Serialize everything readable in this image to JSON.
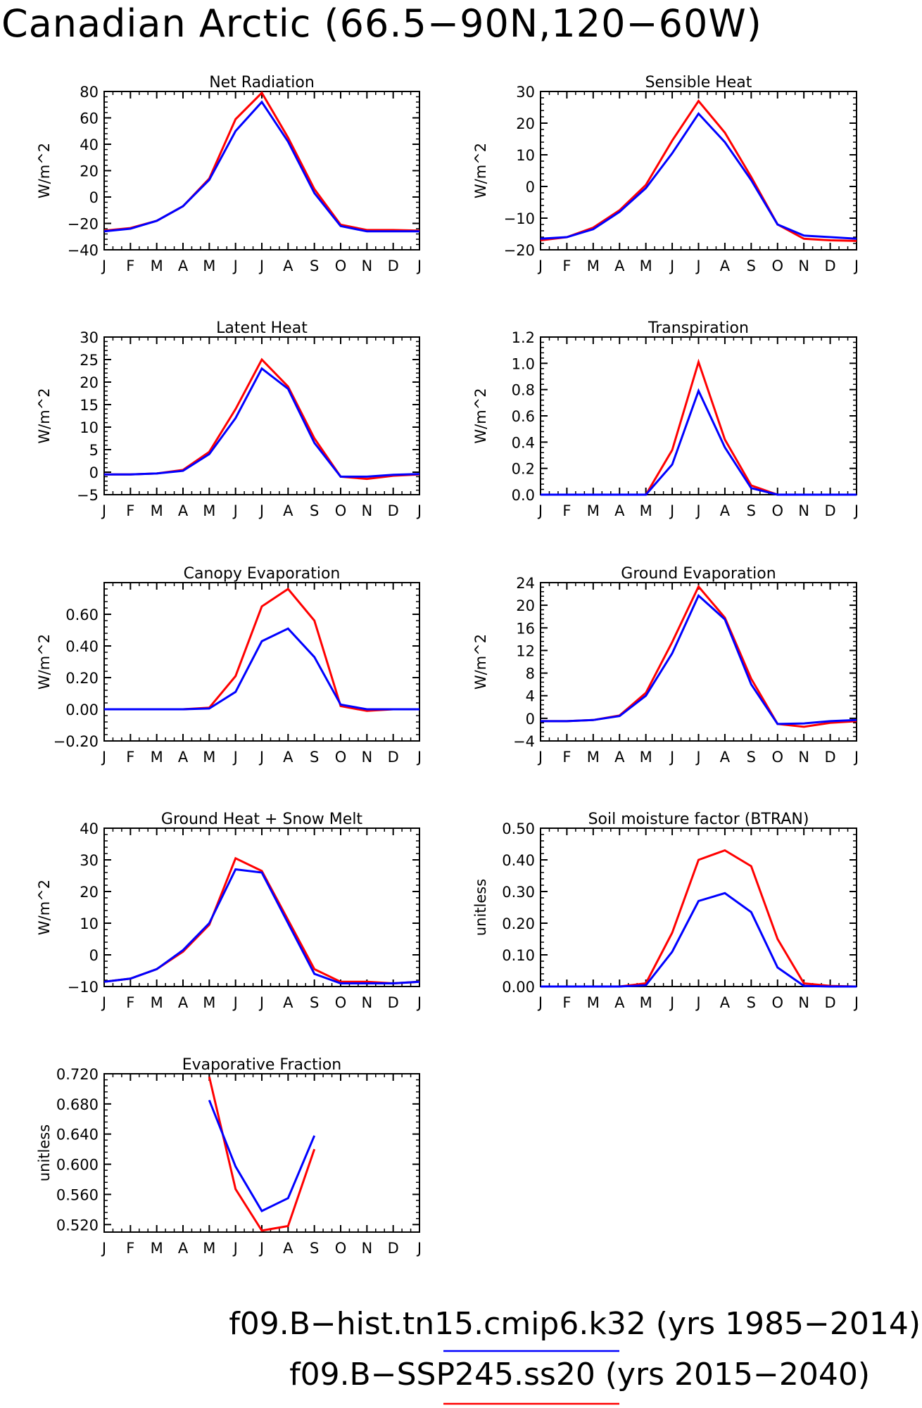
{
  "title": "Canadian Arctic (66.5−90N,120−60W)",
  "legend": [
    {
      "label": "f09.B−hist.tn15.cmip6.k32 (yrs 1985−2014)",
      "color": "#0000ff"
    },
    {
      "label": "f09.B−SSP245.ss20 (yrs 2015−2040)",
      "color": "#ff0000"
    }
  ],
  "colors": {
    "hist": "#0000ff",
    "ssp": "#ff0000",
    "axis": "#000000"
  },
  "chart_data": [
    {
      "type": "line",
      "title": "Net Radiation",
      "ylabel": "W/m^2",
      "x": [
        "J",
        "F",
        "M",
        "A",
        "M",
        "J",
        "J",
        "A",
        "S",
        "O",
        "N",
        "D",
        "J"
      ],
      "ylim": [
        -40,
        80
      ],
      "yticks": [
        -40,
        -20,
        0,
        20,
        40,
        60,
        80
      ],
      "yticklabels": [
        "−40",
        "−20",
        "0",
        "20",
        "40",
        "60",
        "80"
      ],
      "series": [
        {
          "color": "#0000ff",
          "values": [
            -26,
            -24,
            -18,
            -7,
            13,
            50,
            72,
            42,
            3,
            -22,
            -26,
            -26,
            -26
          ]
        },
        {
          "color": "#ff0000",
          "values": [
            -25.5,
            -23.5,
            -18,
            -7,
            14,
            59,
            79,
            45,
            6,
            -21,
            -25,
            -25,
            -25.5
          ]
        }
      ]
    },
    {
      "type": "line",
      "title": "Sensible Heat",
      "ylabel": "W/m^2",
      "x": [
        "J",
        "F",
        "M",
        "A",
        "M",
        "J",
        "J",
        "A",
        "S",
        "O",
        "N",
        "D",
        "J"
      ],
      "ylim": [
        -20,
        30
      ],
      "yticks": [
        -20,
        -10,
        0,
        10,
        20,
        30
      ],
      "yticklabels": [
        "−20",
        "−10",
        "0",
        "10",
        "20",
        "30"
      ],
      "series": [
        {
          "color": "#0000ff",
          "values": [
            -16.5,
            -16,
            -13.5,
            -8,
            -0.5,
            10.5,
            23,
            14,
            2,
            -12,
            -15.5,
            -16,
            -16.5
          ]
        },
        {
          "color": "#ff0000",
          "values": [
            -17,
            -16,
            -13,
            -7.5,
            0.5,
            14.5,
            27,
            17,
            3,
            -12,
            -16.5,
            -17,
            -17.2
          ]
        }
      ]
    },
    {
      "type": "line",
      "title": "Latent Heat",
      "ylabel": "W/m^2",
      "x": [
        "J",
        "F",
        "M",
        "A",
        "M",
        "J",
        "J",
        "A",
        "S",
        "O",
        "N",
        "D",
        "J"
      ],
      "ylim": [
        -5,
        30
      ],
      "yticks": [
        -5,
        0,
        5,
        10,
        15,
        20,
        25,
        30
      ],
      "yticklabels": [
        "−5",
        "0",
        "5",
        "10",
        "15",
        "20",
        "25",
        "30"
      ],
      "series": [
        {
          "color": "#0000ff",
          "values": [
            -0.5,
            -0.5,
            -0.3,
            0.3,
            4,
            12,
            23,
            18.5,
            6.5,
            -1,
            -1,
            -0.6,
            -0.4
          ]
        },
        {
          "color": "#ff0000",
          "values": [
            -0.5,
            -0.5,
            -0.3,
            0.5,
            4.5,
            14,
            25,
            19,
            7.5,
            -1,
            -1.5,
            -0.8,
            -0.5
          ]
        }
      ]
    },
    {
      "type": "line",
      "title": "Transpiration",
      "ylabel": "W/m^2",
      "x": [
        "J",
        "F",
        "M",
        "A",
        "M",
        "J",
        "J",
        "A",
        "S",
        "O",
        "N",
        "D",
        "J"
      ],
      "ylim": [
        0,
        1.2
      ],
      "yticks": [
        0,
        0.2,
        0.4,
        0.6,
        0.8,
        1.0,
        1.2
      ],
      "yticklabels": [
        "0.0",
        "0.2",
        "0.4",
        "0.6",
        "0.8",
        "1.0",
        "1.2"
      ],
      "series": [
        {
          "color": "#0000ff",
          "values": [
            0,
            0,
            0,
            0,
            0,
            0.23,
            0.79,
            0.36,
            0.05,
            0,
            0,
            0,
            0
          ]
        },
        {
          "color": "#ff0000",
          "values": [
            0,
            0,
            0,
            0,
            0,
            0.34,
            1.01,
            0.42,
            0.07,
            0,
            0,
            0,
            0
          ]
        }
      ]
    },
    {
      "type": "line",
      "title": "Canopy Evaporation",
      "ylabel": "W/m^2",
      "x": [
        "J",
        "F",
        "M",
        "A",
        "M",
        "J",
        "J",
        "A",
        "S",
        "O",
        "N",
        "D",
        "J"
      ],
      "ylim": [
        -0.2,
        0.8
      ],
      "yticks": [
        -0.2,
        0,
        0.2,
        0.4,
        0.6
      ],
      "yticklabels": [
        "−0.20",
        "0.00",
        "0.20",
        "0.40",
        "0.60"
      ],
      "series": [
        {
          "color": "#0000ff",
          "values": [
            0,
            0,
            0,
            0,
            0.005,
            0.11,
            0.43,
            0.51,
            0.33,
            0.03,
            0,
            0,
            0
          ]
        },
        {
          "color": "#ff0000",
          "values": [
            0,
            0,
            0,
            0,
            0.01,
            0.21,
            0.65,
            0.76,
            0.56,
            0.02,
            -0.01,
            0,
            0
          ]
        }
      ]
    },
    {
      "type": "line",
      "title": "Ground Evaporation",
      "ylabel": "W/m^2",
      "x": [
        "J",
        "F",
        "M",
        "A",
        "M",
        "J",
        "J",
        "A",
        "S",
        "O",
        "N",
        "D",
        "J"
      ],
      "ylim": [
        -4,
        24
      ],
      "yticks": [
        -4,
        0,
        4,
        8,
        12,
        16,
        20,
        24
      ],
      "yticklabels": [
        "−4",
        "0",
        "4",
        "8",
        "12",
        "16",
        "20",
        "24"
      ],
      "series": [
        {
          "color": "#0000ff",
          "values": [
            -0.5,
            -0.5,
            -0.3,
            0.4,
            4,
            11.5,
            21.7,
            17.5,
            6,
            -1,
            -0.9,
            -0.5,
            -0.3
          ]
        },
        {
          "color": "#ff0000",
          "values": [
            -0.5,
            -0.5,
            -0.3,
            0.5,
            4.5,
            13.5,
            23.3,
            17.8,
            7,
            -1,
            -1.5,
            -0.8,
            -0.5
          ]
        }
      ]
    },
    {
      "type": "line",
      "title": "Ground Heat + Snow Melt",
      "ylabel": "W/m^2",
      "x": [
        "J",
        "F",
        "M",
        "A",
        "M",
        "J",
        "J",
        "A",
        "S",
        "O",
        "N",
        "D",
        "J"
      ],
      "ylim": [
        -10,
        40
      ],
      "yticks": [
        -10,
        0,
        10,
        20,
        30,
        40
      ],
      "yticklabels": [
        "−10",
        "0",
        "10",
        "20",
        "30",
        "40"
      ],
      "series": [
        {
          "color": "#0000ff",
          "values": [
            -8.5,
            -7.5,
            -4.5,
            1.5,
            10,
            27,
            26,
            10,
            -6,
            -9,
            -9,
            -9,
            -8.5
          ]
        },
        {
          "color": "#ff0000",
          "values": [
            -8.5,
            -7.5,
            -4.5,
            1,
            9.5,
            30.5,
            26.5,
            11,
            -4.5,
            -8.5,
            -8.5,
            -9,
            -8.5
          ]
        }
      ]
    },
    {
      "type": "line",
      "title": "Soil moisture factor (BTRAN)",
      "ylabel": "unitless",
      "x": [
        "J",
        "F",
        "M",
        "A",
        "M",
        "J",
        "J",
        "A",
        "S",
        "O",
        "N",
        "D",
        "J"
      ],
      "ylim": [
        0,
        0.5
      ],
      "yticks": [
        0,
        0.1,
        0.2,
        0.3,
        0.4,
        0.5
      ],
      "yticklabels": [
        "0.00",
        "0.10",
        "0.20",
        "0.30",
        "0.40",
        "0.50"
      ],
      "series": [
        {
          "color": "#0000ff",
          "values": [
            0,
            0,
            0,
            0,
            0.004,
            0.11,
            0.27,
            0.295,
            0.235,
            0.06,
            0.002,
            0,
            0
          ]
        },
        {
          "color": "#ff0000",
          "values": [
            0,
            0,
            0,
            0,
            0.01,
            0.17,
            0.4,
            0.43,
            0.38,
            0.15,
            0.01,
            0.002,
            0
          ]
        }
      ]
    },
    {
      "type": "line",
      "title": "Evaporative Fraction",
      "ylabel": "unitless",
      "x": [
        "J",
        "F",
        "M",
        "A",
        "M",
        "J",
        "J",
        "A",
        "S",
        "O",
        "N",
        "D",
        "J"
      ],
      "ylim": [
        0.51,
        0.72
      ],
      "yticks": [
        0.52,
        0.56,
        0.6,
        0.64,
        0.68,
        0.72
      ],
      "yticklabels": [
        "0.520",
        "0.560",
        "0.600",
        "0.640",
        "0.680",
        "0.720"
      ],
      "series": [
        {
          "color": "#0000ff",
          "values": [
            null,
            null,
            null,
            null,
            0.685,
            0.597,
            0.538,
            0.555,
            0.638,
            null,
            null,
            null,
            null
          ]
        },
        {
          "color": "#ff0000",
          "values": [
            null,
            null,
            null,
            null,
            0.716,
            0.567,
            0.512,
            0.518,
            0.62,
            null,
            null,
            null,
            null
          ]
        }
      ]
    }
  ]
}
